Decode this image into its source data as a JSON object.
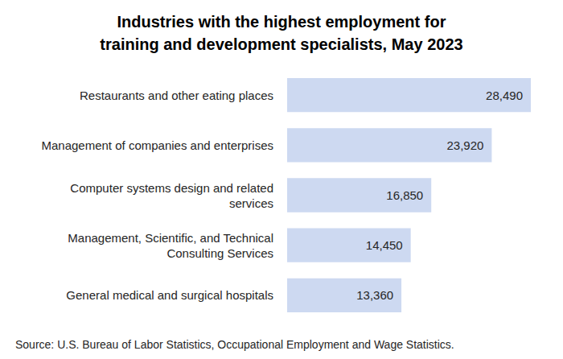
{
  "chart_data": {
    "type": "bar",
    "title": "Industries with the highest employment for\ntraining and development specialists, May 2023",
    "source": "Source: U.S. Bureau of Labor Statistics, Occupational Employment and Wage Statistics.",
    "categories": [
      "Restaurants and other eating places",
      "Management of companies and enterprises",
      "Computer systems design and related\nservices",
      "Management, Scientific, and Technical\nConsulting Services",
      "General medical and surgical hospitals"
    ],
    "values": [
      28490,
      23920,
      16850,
      14450,
      13360
    ],
    "value_labels": [
      "28,490",
      "23,920",
      "16,850",
      "14,450",
      "13,360"
    ],
    "color": "#cdd9f1",
    "orientation": "horizontal",
    "xlim": [
      0,
      28490
    ],
    "data_labels": true,
    "tick_labels": "y",
    "grid": false
  }
}
